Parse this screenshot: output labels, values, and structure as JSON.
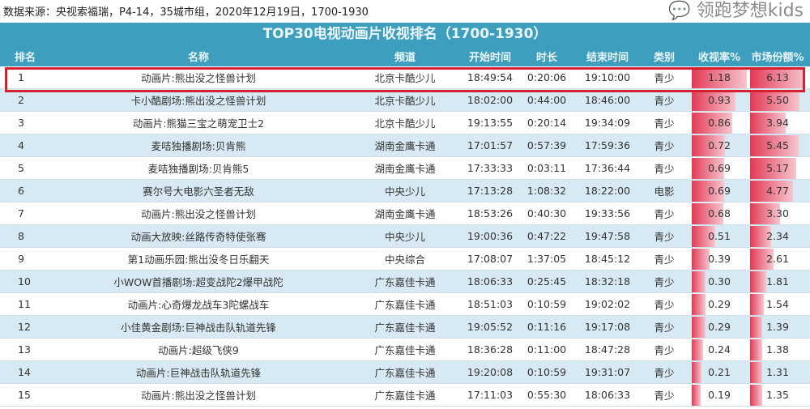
{
  "source": "数据来源：央视索福瑞，P4-14，35城市组，2020年12月19日，1700-1930",
  "title": "TOP30电视动画片收视排名（1700-1930）",
  "columns": [
    "排名",
    "名称",
    "频道",
    "开始时间",
    "时长",
    "结束时间",
    "类别",
    "收视率%",
    "市场份额%"
  ],
  "rows": [
    [
      "1",
      "动画片:熊出没之怪兽计划",
      "北京卡酷少儿",
      "18:49:54",
      "0:20:06",
      "19:10:00",
      "青少",
      "1.18",
      "6.13"
    ],
    [
      "2",
      "卡小酷剧场:熊出没之怪兽计划",
      "北京卡酷少儿",
      "18:02:00",
      "0:44:00",
      "18:46:00",
      "青少",
      "0.93",
      "5.50"
    ],
    [
      "3",
      "动画片:熊猫三宝之萌宠卫士2",
      "北京卡酷少儿",
      "19:13:55",
      "0:20:14",
      "19:34:09",
      "青少",
      "0.86",
      "3.94"
    ],
    [
      "4",
      "麦咭独播剧场:贝肯熊",
      "湖南金鹰卡通",
      "17:01:57",
      "0:57:39",
      "17:59:36",
      "青少",
      "0.72",
      "5.45"
    ],
    [
      "5",
      "麦咭独播剧场:贝肯熊5",
      "湖南金鹰卡通",
      "17:33:33",
      "0:03:11",
      "17:36:44",
      "青少",
      "0.69",
      "5.17"
    ],
    [
      "6",
      "赛尔号大电影六圣者无敌",
      "中央少儿",
      "17:13:28",
      "1:08:32",
      "18:22:00",
      "电影",
      "0.69",
      "4.77"
    ],
    [
      "7",
      "动画片:熊出没之怪兽计划",
      "湖南金鹰卡通",
      "18:53:26",
      "0:40:30",
      "19:33:56",
      "青少",
      "0.68",
      "3.30"
    ],
    [
      "8",
      "动画大放映:丝路传奇特使张骞",
      "中央少儿",
      "19:00:36",
      "0:47:22",
      "19:47:58",
      "青少",
      "0.51",
      "2.34"
    ],
    [
      "9",
      "第1动画乐园:熊出没冬日乐翻天",
      "中央综合",
      "17:08:07",
      "1:37:05",
      "18:45:12",
      "青少",
      "0.39",
      "2.61"
    ],
    [
      "10",
      "小WOW首播剧场:超变战陀2爆甲战陀",
      "广东嘉佳卡通",
      "18:06:33",
      "0:25:45",
      "18:32:18",
      "青少",
      "0.30",
      "1.81"
    ],
    [
      "11",
      "动画片:心奇爆龙战车3陀螺战车",
      "广东嘉佳卡通",
      "18:51:03",
      "0:10:59",
      "19:02:02",
      "青少",
      "0.29",
      "1.54"
    ],
    [
      "12",
      "小佳黄金剧场:巨神战击队轨道先锋",
      "广东嘉佳卡通",
      "19:05:52",
      "0:11:16",
      "19:17:08",
      "青少",
      "0.29",
      "1.39"
    ],
    [
      "13",
      "动画片:超级飞侠9",
      "广东嘉佳卡通",
      "18:36:28",
      "0:11:00",
      "18:47:28",
      "青少",
      "0.24",
      "1.38"
    ],
    [
      "14",
      "动画片:巨神战击队轨道先锋",
      "广东嘉佳卡通",
      "19:20:08",
      "0:10:59",
      "19:31:07",
      "青少",
      "0.21",
      "1.31"
    ],
    [
      "15",
      "动画片:熊出没之怪兽计划",
      "广东嘉佳卡通",
      "17:11:03",
      "0:55:30",
      "18:06:33",
      "青少",
      "0.19",
      "1.35"
    ]
  ],
  "watermark": "领跑梦想kids",
  "colors": {
    "header": "#3d9fbd",
    "highlight": "#d4202f",
    "bar": "#e23a55"
  }
}
